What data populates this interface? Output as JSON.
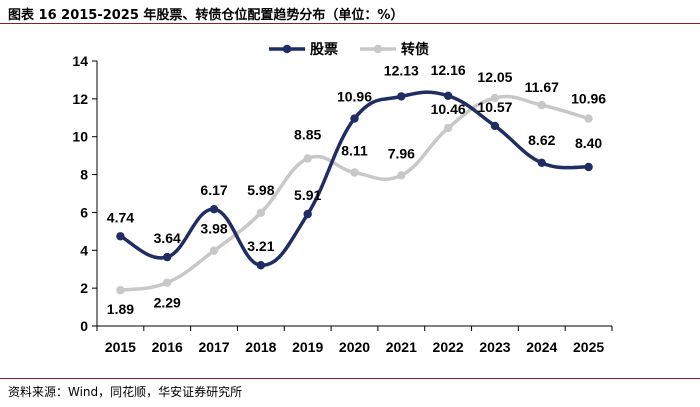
{
  "figure": {
    "title": "图表 16 2015-2025 年股票、转债仓位配置趋势分布（单位：%）",
    "source": "资料来源：Wind，同花顺，华安证券研究所"
  },
  "chart_data": {
    "type": "line",
    "categories": [
      "2015",
      "2016",
      "2017",
      "2018",
      "2019",
      "2020",
      "2021",
      "2022",
      "2023",
      "2024",
      "2025"
    ],
    "series": [
      {
        "name": "股票",
        "color": "#1f2d63",
        "values": [
          4.74,
          3.64,
          6.17,
          3.21,
          5.91,
          10.96,
          12.13,
          12.16,
          10.57,
          8.62,
          8.4
        ],
        "labels": [
          "4.74",
          "3.64",
          "6.17",
          "3.21",
          "5.91",
          "10.96",
          "12.13",
          "12.16",
          "10.57",
          "8.62",
          "8.40"
        ]
      },
      {
        "name": "转债",
        "color": "#c8c8c8",
        "values": [
          1.89,
          2.29,
          3.98,
          5.98,
          8.85,
          8.11,
          7.96,
          10.46,
          12.05,
          11.67,
          10.96
        ],
        "labels": [
          "1.89",
          "2.29",
          "3.98",
          "5.98",
          "8.85",
          "8.11",
          "7.96",
          "10.46",
          "12.05",
          "11.67",
          "10.96"
        ]
      }
    ],
    "y_ticks": [
      "0",
      "2",
      "4",
      "6",
      "8",
      "10",
      "12",
      "14"
    ],
    "ylim": [
      0,
      14
    ],
    "legend_position": "top-center",
    "grid": false,
    "smooth": true
  }
}
